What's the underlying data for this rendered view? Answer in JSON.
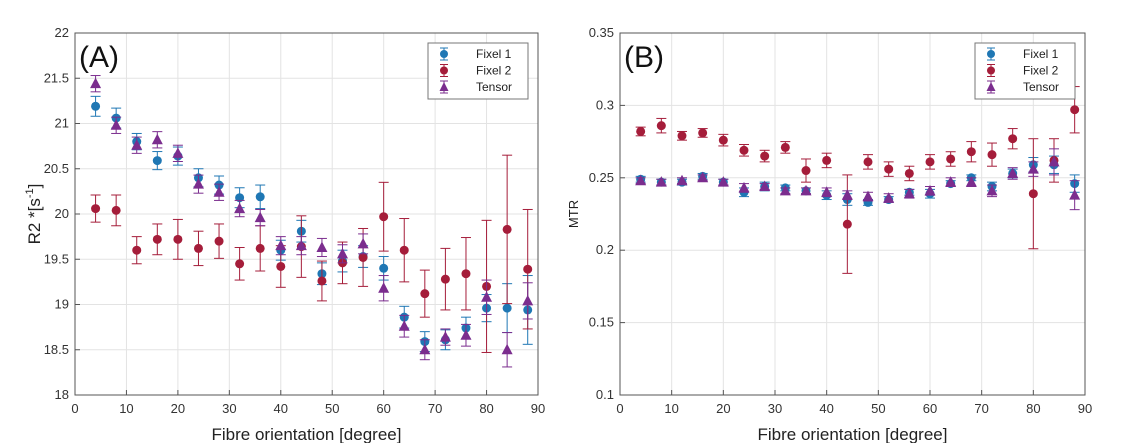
{
  "colors": {
    "fixel1": "#1f77b4",
    "fixel2": "#a51d3a",
    "tensor": "#7b2d8e",
    "grid": "#e3e3e3",
    "axis": "#555555"
  },
  "chart_data": [
    {
      "type": "scatter",
      "panel_label": "(A)",
      "xlabel": "Fibre orientation [degree]",
      "ylabel_main": "R2 *[s",
      "ylabel_sup": "-1",
      "ylabel_close": "]",
      "xlim": [
        0,
        90
      ],
      "ylim": [
        18,
        22
      ],
      "xticks": [
        0,
        10,
        20,
        30,
        40,
        50,
        60,
        70,
        80,
        90
      ],
      "yticks": [
        18,
        18.5,
        19,
        19.5,
        20,
        20.5,
        21,
        21.5,
        22
      ],
      "ytick_labels": [
        "18",
        "18.5",
        "19",
        "19.5",
        "20",
        "20.5",
        "21",
        "21.5",
        "22"
      ],
      "grid": true,
      "legend_position": "top-right",
      "x": [
        4,
        8,
        12,
        16,
        20,
        24,
        28,
        32,
        36,
        40,
        44,
        48,
        52,
        56,
        60,
        64,
        68,
        72,
        76,
        80,
        84,
        88
      ],
      "series": [
        {
          "name": "Fixel 1",
          "marker": "circle",
          "values": [
            21.19,
            21.06,
            20.8,
            20.59,
            20.64,
            20.4,
            20.32,
            20.18,
            20.19,
            19.6,
            19.81,
            19.34,
            19.48,
            19.53,
            19.4,
            18.86,
            18.59,
            18.61,
            18.74,
            18.96,
            18.96,
            18.94
          ],
          "errors": [
            0.11,
            0.11,
            0.09,
            0.1,
            0.1,
            0.1,
            0.1,
            0.11,
            0.13,
            0.11,
            0.12,
            0.12,
            0.12,
            0.12,
            0.13,
            0.12,
            0.11,
            0.11,
            0.12,
            0.15,
            0.27,
            0.38
          ]
        },
        {
          "name": "Fixel 2",
          "marker": "circle",
          "values": [
            20.06,
            20.04,
            19.6,
            19.72,
            19.72,
            19.62,
            19.7,
            19.45,
            19.62,
            19.42,
            19.64,
            19.26,
            19.46,
            19.52,
            19.97,
            19.6,
            19.12,
            19.28,
            19.34,
            19.2,
            19.83,
            19.39
          ],
          "errors": [
            0.15,
            0.17,
            0.15,
            0.17,
            0.22,
            0.19,
            0.19,
            0.18,
            0.25,
            0.23,
            0.34,
            0.22,
            0.23,
            0.32,
            0.38,
            0.35,
            0.26,
            0.34,
            0.4,
            0.73,
            0.82,
            0.66
          ]
        },
        {
          "name": "Tensor",
          "marker": "triangle",
          "values": [
            21.44,
            20.98,
            20.76,
            20.82,
            20.67,
            20.33,
            20.24,
            20.06,
            19.96,
            19.65,
            19.65,
            19.63,
            19.56,
            19.67,
            19.18,
            18.76,
            18.5,
            18.64,
            18.66,
            19.08,
            18.5,
            19.04
          ],
          "errors": [
            0.09,
            0.09,
            0.09,
            0.09,
            0.09,
            0.1,
            0.09,
            0.09,
            0.09,
            0.1,
            0.1,
            0.1,
            0.1,
            0.11,
            0.14,
            0.12,
            0.11,
            0.09,
            0.12,
            0.19,
            0.19,
            0.2
          ]
        }
      ]
    },
    {
      "type": "scatter",
      "panel_label": "(B)",
      "xlabel": "Fibre orientation [degree]",
      "ylabel_main": "MTR",
      "ylabel_sup": "",
      "ylabel_close": "",
      "xlim": [
        0,
        90
      ],
      "ylim": [
        0.1,
        0.35
      ],
      "xticks": [
        0,
        10,
        20,
        30,
        40,
        50,
        60,
        70,
        80,
        90
      ],
      "yticks": [
        0.1,
        0.15,
        0.2,
        0.25,
        0.3,
        0.35
      ],
      "ytick_labels": [
        "0.1",
        "0.15",
        "0.2",
        "0.25",
        "0.3",
        "0.35"
      ],
      "grid": true,
      "legend_position": "top-right",
      "x": [
        4,
        8,
        12,
        16,
        20,
        24,
        28,
        32,
        36,
        40,
        44,
        48,
        52,
        56,
        60,
        64,
        68,
        72,
        76,
        80,
        84,
        88
      ],
      "series": [
        {
          "name": "Fixel 1",
          "marker": "circle",
          "values": [
            0.249,
            0.247,
            0.247,
            0.251,
            0.247,
            0.24,
            0.244,
            0.243,
            0.241,
            0.238,
            0.235,
            0.233,
            0.235,
            0.24,
            0.239,
            0.246,
            0.25,
            0.244,
            0.253,
            0.259,
            0.259,
            0.246
          ],
          "errors": [
            0.002,
            0.002,
            0.002,
            0.002,
            0.002,
            0.003,
            0.003,
            0.002,
            0.002,
            0.003,
            0.004,
            0.002,
            0.002,
            0.002,
            0.003,
            0.002,
            0.002,
            0.003,
            0.003,
            0.005,
            0.006,
            0.006
          ]
        },
        {
          "name": "Fixel 2",
          "marker": "circle",
          "values": [
            0.282,
            0.286,
            0.279,
            0.281,
            0.276,
            0.269,
            0.265,
            0.271,
            0.255,
            0.262,
            0.218,
            0.261,
            0.256,
            0.253,
            0.261,
            0.263,
            0.268,
            0.266,
            0.277,
            0.239,
            0.262,
            0.297
          ],
          "errors": [
            0.003,
            0.005,
            0.003,
            0.003,
            0.004,
            0.004,
            0.004,
            0.004,
            0.008,
            0.005,
            0.034,
            0.005,
            0.005,
            0.005,
            0.005,
            0.005,
            0.007,
            0.008,
            0.007,
            0.038,
            0.015,
            0.016
          ]
        },
        {
          "name": "Tensor",
          "marker": "triangle",
          "values": [
            0.248,
            0.247,
            0.248,
            0.25,
            0.247,
            0.243,
            0.244,
            0.241,
            0.241,
            0.24,
            0.238,
            0.237,
            0.236,
            0.239,
            0.241,
            0.247,
            0.247,
            0.241,
            0.253,
            0.256,
            0.261,
            0.238
          ],
          "errors": [
            0.002,
            0.002,
            0.002,
            0.002,
            0.002,
            0.003,
            0.002,
            0.002,
            0.002,
            0.003,
            0.003,
            0.003,
            0.003,
            0.003,
            0.003,
            0.003,
            0.003,
            0.004,
            0.004,
            0.005,
            0.009,
            0.01
          ]
        }
      ]
    }
  ]
}
